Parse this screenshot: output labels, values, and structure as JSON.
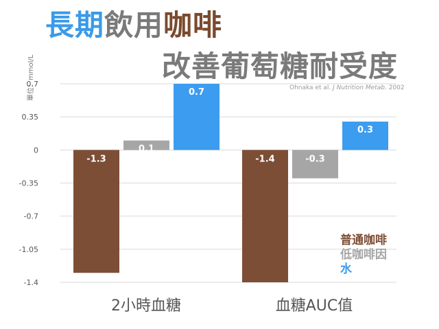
{
  "title": {
    "line1": [
      {
        "text": "長期",
        "color": "#3a9ae8"
      },
      {
        "text": "飲用",
        "color": "#7a7a7a"
      },
      {
        "text": "咖啡",
        "color": "#7a4a2e"
      }
    ],
    "line2": "改善葡萄糖耐受度",
    "line2_color": "#7a7a7a"
  },
  "citation": {
    "authors": "Ohnaka et al.",
    "journal": "J Nutrition Metab.",
    "year": "2002"
  },
  "unit_label": "單位：mmol/L",
  "colors": {
    "coffee": "#7d4e36",
    "decaf": "#a6a6a6",
    "water": "#3b9cf0"
  },
  "chart_data": {
    "type": "bar",
    "categories": [
      "2小時血糖",
      "血糖AUC值"
    ],
    "series": [
      {
        "name": "普通咖啡",
        "values": [
          -1.3,
          -1.4
        ],
        "labels": [
          "-1.3",
          "-1.4"
        ],
        "color": "#7d4e36"
      },
      {
        "name": "低咖啡因",
        "values": [
          0.1,
          -0.3
        ],
        "labels": [
          "0.1",
          "-0.3"
        ],
        "color": "#a6a6a6"
      },
      {
        "name": "水",
        "values": [
          0.7,
          0.3
        ],
        "labels": [
          "0.7",
          "0.3"
        ],
        "color": "#3b9cf0"
      }
    ],
    "yticks": [
      "0.7",
      "0.35",
      "0",
      "-0.35",
      "-0.7",
      "-1.05",
      "-1.4"
    ],
    "ylim": [
      -1.4,
      0.7
    ],
    "grid": true,
    "legend_position": "bottom-right"
  }
}
